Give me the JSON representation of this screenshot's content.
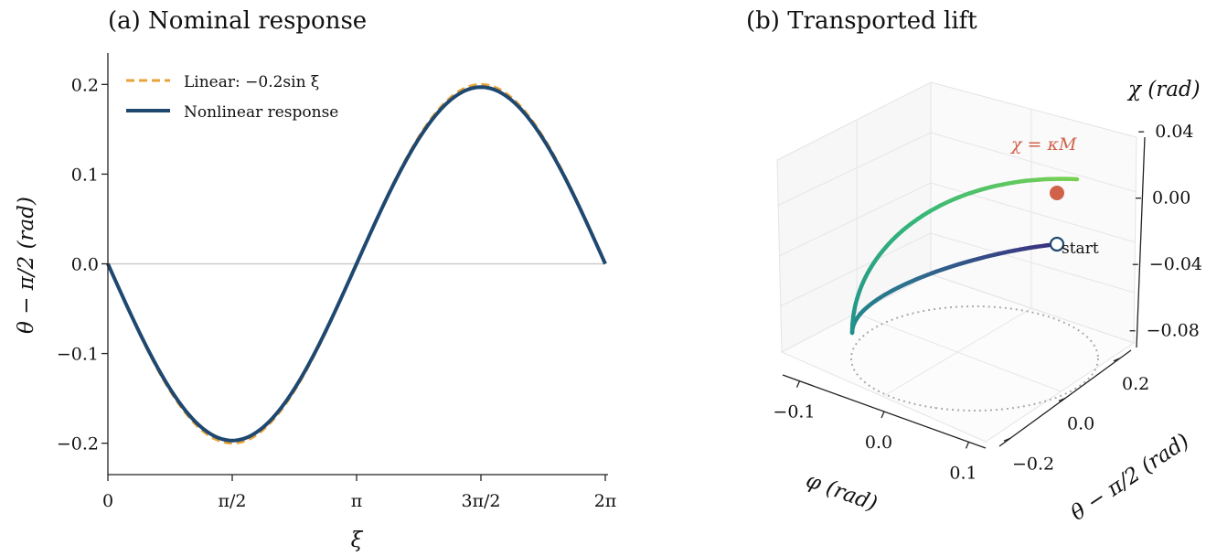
{
  "chart_data": [
    {
      "panel": "a",
      "type": "line",
      "title": "(a) Nominal response",
      "xlabel": "ξ",
      "ylabel": "θ − π/2 (rad)",
      "xlim": [
        0,
        6.2832
      ],
      "ylim": [
        -0.235,
        0.235
      ],
      "xticks": [
        {
          "value": 0,
          "label": "0"
        },
        {
          "value": 1.5708,
          "label": "π/2"
        },
        {
          "value": 3.1416,
          "label": "π"
        },
        {
          "value": 4.7124,
          "label": "3π/2"
        },
        {
          "value": 6.2832,
          "label": "2π"
        }
      ],
      "yticks": [
        {
          "value": -0.2,
          "label": "−0.2"
        },
        {
          "value": -0.1,
          "label": "−0.1"
        },
        {
          "value": 0.0,
          "label": "0.0"
        },
        {
          "value": 0.1,
          "label": "0.1"
        },
        {
          "value": 0.2,
          "label": "0.2"
        }
      ],
      "reference_line_y": 0.0,
      "legend_position": "upper-left",
      "series": [
        {
          "name": "Linear: −0.2sin ξ",
          "style": "dashed",
          "color": "#E8A33A",
          "function": "-0.2*sin(x)",
          "amplitude": 0.2
        },
        {
          "name": "Nonlinear response",
          "style": "solid",
          "color": "#1F4870",
          "function": "-0.197*sin(x)",
          "amplitude": 0.197
        }
      ]
    },
    {
      "panel": "b",
      "type": "line3d",
      "title": "(b) Transported lift",
      "xlabel": "φ (rad)",
      "ylabel": "θ − π/2 (rad)",
      "zlabel": "χ (rad)",
      "xlim": [
        -0.12,
        0.12
      ],
      "ylim": [
        -0.24,
        0.24
      ],
      "zlim": [
        -0.1,
        0.05
      ],
      "xticks": [
        {
          "value": -0.1,
          "label": "−0.1"
        },
        {
          "value": 0.0,
          "label": "0.0"
        },
        {
          "value": 0.1,
          "label": "0.1"
        }
      ],
      "yticks": [
        {
          "value": -0.2,
          "label": "−0.2"
        },
        {
          "value": 0.0,
          "label": "0.0"
        },
        {
          "value": 0.2,
          "label": "0.2"
        }
      ],
      "zticks": [
        {
          "value": -0.08,
          "label": "−0.08"
        },
        {
          "value": -0.04,
          "label": "−0.04"
        },
        {
          "value": 0.0,
          "label": "0.00"
        },
        {
          "value": 0.04,
          "label": "0.04"
        }
      ],
      "curve": {
        "description": "closed loop in (φ, θ−π/2) with χ increasing monotonically",
        "phi_amplitude": 0.1,
        "theta_amplitude": 0.2,
        "chi_start": -0.025,
        "chi_end": 0.018,
        "colormap": [
          "#3B2F80",
          "#2C6E8E",
          "#21918C",
          "#35B779",
          "#7AD151"
        ]
      },
      "projection": {
        "style": "dotted",
        "color": "#AAAAAA"
      },
      "markers": [
        {
          "name": "start",
          "label": "start",
          "style": "open",
          "color": "#1F4870"
        },
        {
          "name": "end",
          "label": "χ = κM",
          "style": "filled",
          "color": "#D0624A"
        }
      ]
    }
  ]
}
